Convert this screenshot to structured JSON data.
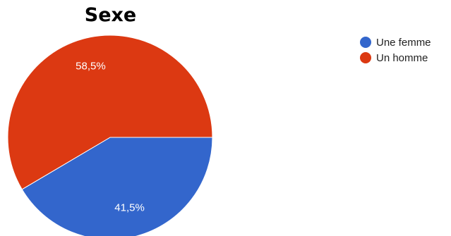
{
  "chart_data": {
    "type": "pie",
    "title": "Sexe",
    "legend_position": "right",
    "slices": [
      {
        "label": "Une femme",
        "value": 41.5,
        "value_label": "41,5%",
        "color": "#3366cc"
      },
      {
        "label": "Un homme",
        "value": 58.5,
        "value_label": "58,5%",
        "color": "#dc3912"
      }
    ]
  }
}
